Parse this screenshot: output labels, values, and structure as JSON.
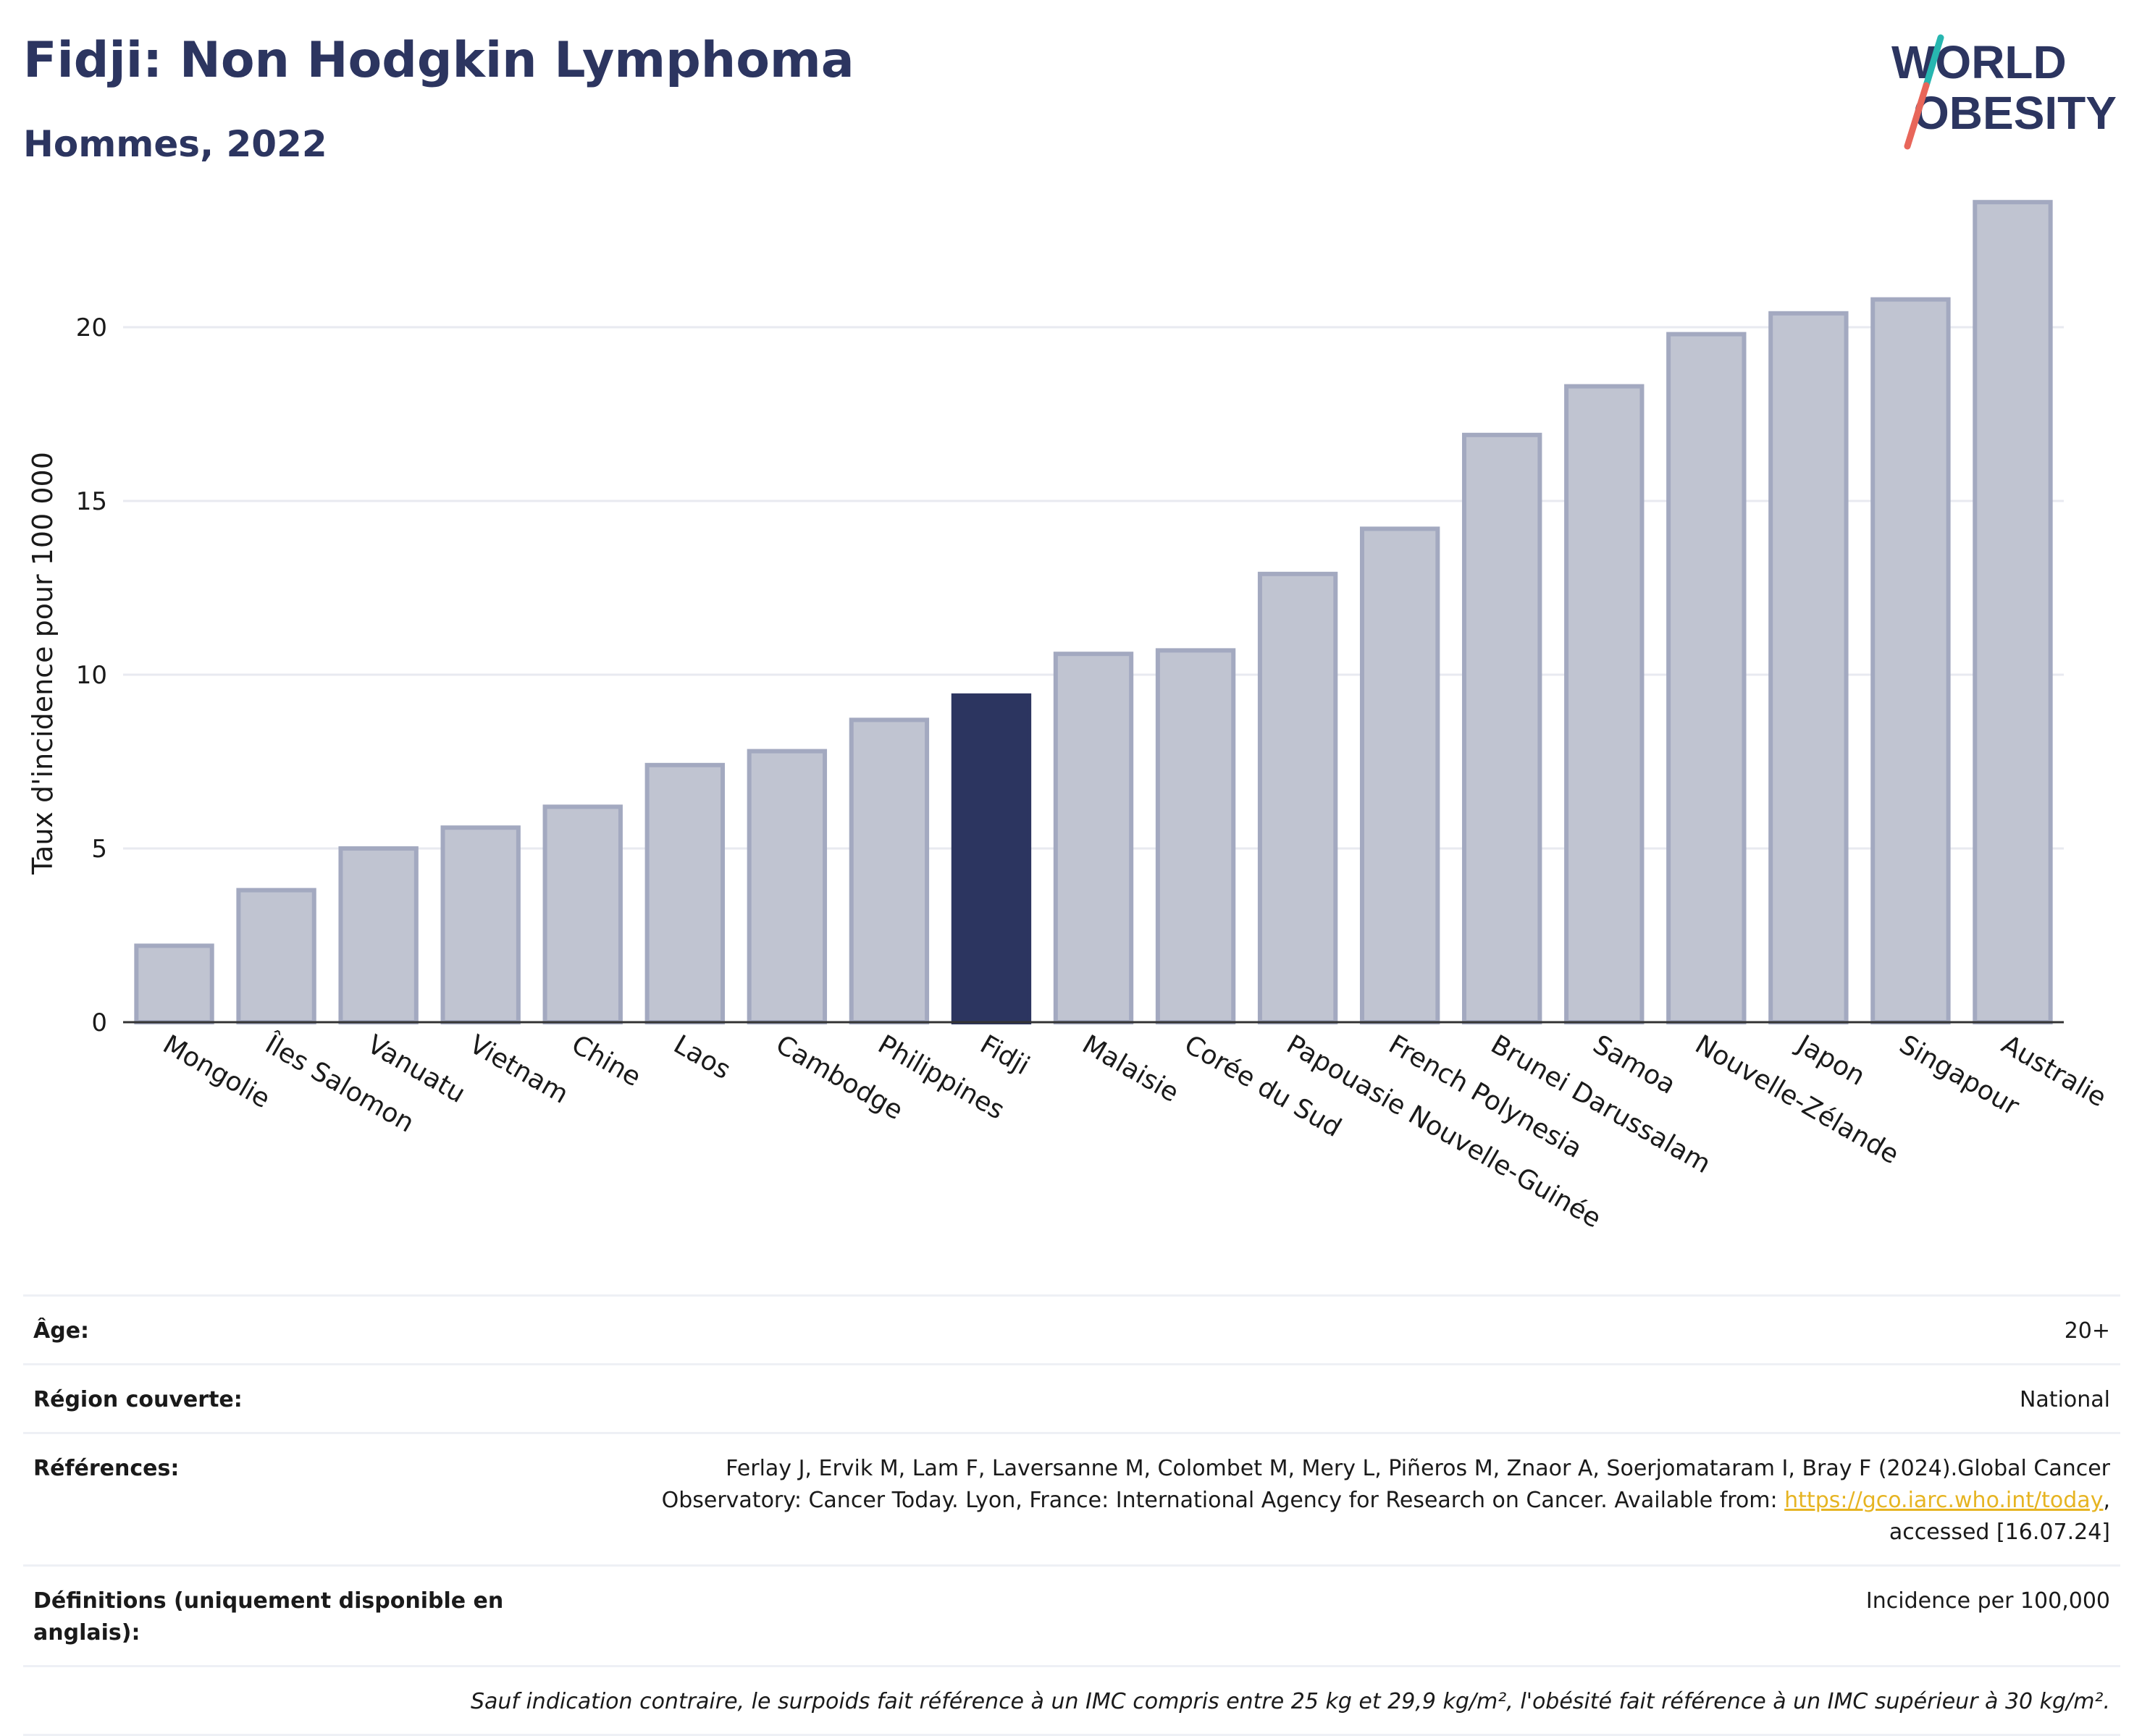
{
  "header": {
    "title": "Fidji: Non Hodgkin Lymphoma",
    "subtitle": "Hommes, 2022",
    "logo_line1": "WORLD",
    "logo_line2": "OBESITY"
  },
  "colors": {
    "highlight": "#2c3560",
    "bar": "#c0c4d1",
    "bar_stroke": "#a3a9c0",
    "grid": "#e8eaf0",
    "logo_teal": "#27b6b0",
    "logo_red": "#e8665a"
  },
  "chart_data": {
    "type": "bar",
    "ylabel": "Taux d'incidence pour 100 000",
    "ylim": [
      0,
      24
    ],
    "yticks": [
      0,
      5,
      10,
      15,
      20
    ],
    "grid": true,
    "highlight": "Fidji",
    "categories": [
      "Mongolie",
      "Îles Salomon",
      "Vanuatu",
      "Vietnam",
      "Chine",
      "Laos",
      "Cambodge",
      "Philippines",
      "Fidji",
      "Malaisie",
      "Corée du Sud",
      "Papouasie Nouvelle-Guinée",
      "French Polynesia",
      "Brunei Darussalam",
      "Samoa",
      "Nouvelle-Zélande",
      "Japon",
      "Singapour",
      "Australie"
    ],
    "values": [
      2.2,
      3.8,
      5.0,
      5.6,
      6.2,
      7.4,
      7.8,
      8.7,
      9.4,
      10.6,
      10.7,
      12.9,
      14.2,
      16.9,
      18.3,
      19.8,
      20.4,
      20.8,
      23.6
    ]
  },
  "meta": {
    "age_label": "Âge:",
    "age_value": "20+",
    "region_label": "Région couverte:",
    "region_value": "National",
    "refs_label": "Références:",
    "refs_text1": "Ferlay J, Ervik M, Lam F, Laversanne M, Colombet M, Mery L, Piñeros M, Znaor A, Soerjomataram I, Bray F (2024).Global Cancer",
    "refs_text2": "Observatory: Cancer Today. Lyon, France: International Agency for Research on Cancer. Available from: ",
    "refs_link": "https://gco.iarc.who.int/today",
    "refs_text3": ",",
    "refs_text4": "accessed [16.07.24]",
    "defs_label": "Définitions (uniquement disponible en anglais):",
    "defs_value": "Incidence per 100,000",
    "note": "Sauf indication contraire, le surpoids fait référence à un IMC compris entre 25 kg et 29,9 kg/m², l'obésité fait référence à un IMC supérieur à 30 kg/m²."
  }
}
